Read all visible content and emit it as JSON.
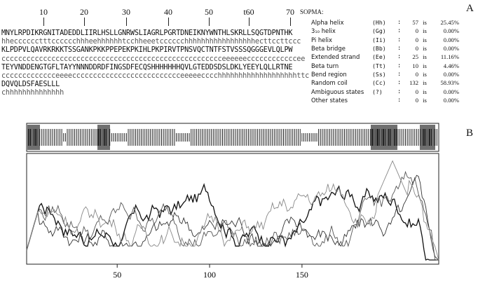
{
  "ruler": {
    "ticks": [
      "10",
      "20",
      "30",
      "40",
      "50",
      "t60",
      "70"
    ]
  },
  "sequence_lines": [
    {
      "aa": "MNYLRPDIKRGNITADEDDLIIRLHSLLGNRWSLIAGRLPGRTDNEIKNYWNTHLSKRLLSQGTDPNTHK",
      "ss": "hhecccccctttcccccchhheehhhhhhtcchheeetcccccchhhhhhhhhhhhhhhhhecttccttccc"
    },
    {
      "aa": "KLPDPVLQAVRKRKKTSSGANKPKKPPEPEKPKIHLPKPIRVTPNSVQCTNTFSTVSSSQGGGEVLQLPW",
      "ss": "ccccccccccccccccccccccccccccccccccccccccccccccccccccceeeeeeccccccccccccee"
    },
    {
      "aa": "TEYVNDDENGTGFLTAYYNNNDDRDFINGSDFECQSHHHHHHHQVLGTEDDSDSLDKLYEEYLQLLRTNE",
      "ss": "ccccccccccccceeeecccccccccccccccccccccccccceeeeecccchhhhhhhhhhhhhhhhhhhttc"
    },
    {
      "aa": "DQVQLDSFAESLLL",
      "ss": "chhhhhhhhhhhhhh"
    }
  ],
  "panel_labels": {
    "a": "A",
    "b": "B"
  },
  "sopma": {
    "title": "SOPMA:",
    "unit": "is",
    "rows": [
      {
        "name": "Alpha helix",
        "code": "(Hh)",
        "count": "57",
        "pct": "25.45%"
      },
      {
        "name": "3₁₀ helix",
        "code": "(Gg)",
        "count": "0",
        "pct": "0.00%"
      },
      {
        "name": "Pi helix",
        "code": "(Ii)",
        "count": "0",
        "pct": "0.00%"
      },
      {
        "name": "Beta bridge",
        "code": "(Bb)",
        "count": "0",
        "pct": "0.00%"
      },
      {
        "name": "Extended strand",
        "code": "(Ee)",
        "count": "25",
        "pct": "11.16%"
      },
      {
        "name": "Beta turn",
        "code": "(Tt)",
        "count": "10",
        "pct": "4.46%"
      },
      {
        "name": "Bend region",
        "code": "(Ss)",
        "count": "0",
        "pct": "0.00%"
      },
      {
        "name": "Random coil",
        "code": "(Cc)",
        "count": "132",
        "pct": "58.93%"
      },
      {
        "name": "Ambiguous states",
        "code": "(?)",
        "count": "0",
        "pct": "0.00%"
      },
      {
        "name": "Other states",
        "code": "",
        "count": "0",
        "pct": "0.00%"
      }
    ]
  },
  "chart_data": {
    "type": "line",
    "x_ticks": [
      "50",
      "100",
      "150"
    ],
    "xlim": [
      1,
      224
    ],
    "series_count": 4,
    "ss_track_pattern": "hhhhhhhhhhhhhhhhhhhheehhhhhhhhhhhhhhhhhhhhhhhheeeeeeeeehhhhhhhhhhhhhhhhhhhhhhhhhheeeeeeeehhhhhhhhhhhhhhhhhhhhhhhhhhhhhhhhhhhhhhhhhhhhhhhhhhhhhhhhhhhheeeeeeeeehhhhhhhhhhhhhhhhhhhhhhhhhhhhhhhhhhhhhhhhhhhhhhhhhhhhhhhhhhhhhhhhhhhhhhhhhhhhhhhhhhhhhhhhhhhhhhh"
  }
}
